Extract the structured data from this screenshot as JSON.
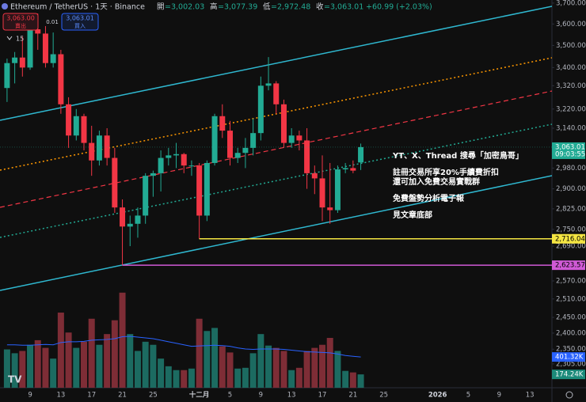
{
  "header": {
    "symbol": "Ethereum / TetherUS · 1天 · Binance",
    "ohlc": [
      {
        "label": "開",
        "value": "=3,002.03"
      },
      {
        "label": "高",
        "value": "=3,077.39"
      },
      {
        "label": "低",
        "value": "=2,972.48"
      },
      {
        "label": "收",
        "value": "=3,063.01"
      }
    ],
    "change": "+60.99 (+2.03%)"
  },
  "trade": {
    "sell_price": "3,063.00",
    "sell": "賣出",
    "spread": "0.01",
    "buy_price": "3,063.01",
    "buy": "買入"
  },
  "indicator_count": "15",
  "annotations": [
    "YT、X、Thread 搜尋「加密鳥哥」",
    "註冊交易所享20%手續費折扣",
    "還可加入免費交易實戰群",
    "免費盤勢分析電子報",
    "見文章底部"
  ],
  "chart_data": {
    "type": "candlestick",
    "log_scale": true,
    "categories": [
      null,
      null,
      null,
      "9",
      null,
      null,
      null,
      "13",
      null,
      null,
      null,
      "17",
      null,
      null,
      null,
      "21",
      null,
      null,
      null,
      "25",
      null,
      null,
      null,
      null,
      null,
      "十二月",
      null,
      null,
      null,
      "5",
      null,
      null,
      null,
      "9",
      null,
      null,
      null,
      "13",
      null,
      null,
      null,
      "17",
      null,
      null,
      null,
      "21",
      null,
      null,
      null,
      "25",
      null,
      null,
      null,
      null,
      null,
      null,
      "2026",
      null,
      null,
      null,
      "5",
      null,
      null,
      null,
      "9",
      null,
      null,
      null,
      "13",
      null
    ],
    "open": [
      3310,
      3420,
      3445,
      3400,
      3575,
      3555,
      3420,
      3460,
      3240,
      3110,
      3190,
      3080,
      3010,
      3110,
      3020,
      2830,
      2760,
      2770,
      2800,
      2950,
      2960,
      3020,
      3030,
      3035,
      2990,
      2990,
      2800,
      3000,
      3190,
      3130,
      3020,
      3040,
      3060,
      3120,
      3320,
      3330,
      3240,
      3080,
      3110,
      3090,
      2960,
      2940,
      2830,
      2820,
      2975,
      2980,
      3002.03,
      null,
      null,
      null,
      null,
      null,
      null,
      null,
      null,
      null,
      null,
      null,
      null,
      null,
      null,
      null,
      null,
      null,
      null,
      null,
      null,
      null,
      null,
      null
    ],
    "high": [
      3440,
      3470,
      3540,
      3610,
      3650,
      3590,
      3560,
      3480,
      3270,
      3220,
      3200,
      3150,
      3130,
      3140,
      3060,
      2860,
      2800,
      2830,
      2960,
      2970,
      3050,
      3060,
      3080,
      3040,
      3010,
      3000,
      3010,
      3200,
      3240,
      3170,
      3060,
      3100,
      3180,
      3360,
      3447,
      3340,
      3260,
      3140,
      3130,
      3140,
      2990,
      3030,
      3000,
      2990,
      3000,
      3010,
      3077.39,
      null,
      null,
      null,
      null,
      null,
      null,
      null,
      null,
      null,
      null,
      null,
      null,
      null,
      null,
      null,
      null,
      null,
      null,
      null,
      null,
      null,
      null,
      null
    ],
    "low": [
      3250,
      3330,
      3360,
      3390,
      3480,
      3400,
      3400,
      3200,
      3060,
      3090,
      3050,
      2950,
      2990,
      2990,
      2810,
      2623.57,
      2690,
      2720,
      2770,
      2870,
      2890,
      2990,
      2980,
      2960,
      2950,
      2716.04,
      2780,
      2990,
      3100,
      2990,
      3000,
      2980,
      3030,
      3090,
      3300,
      3200,
      3060,
      3060,
      3050,
      2900,
      2880,
      2780,
      2770,
      2810,
      2960,
      2960,
      2972.48,
      null,
      null,
      null,
      null,
      null,
      null,
      null,
      null,
      null,
      null,
      null,
      null,
      null,
      null,
      null,
      null,
      null,
      null,
      null,
      null,
      null,
      null,
      null
    ],
    "close": [
      3420,
      3445,
      3400,
      3575,
      3555,
      3420,
      3460,
      3240,
      3110,
      3190,
      3080,
      3010,
      3110,
      3020,
      2830,
      2760,
      2770,
      2800,
      2950,
      2960,
      3020,
      3030,
      3035,
      2990,
      2990,
      2800,
      3000,
      3190,
      3130,
      3020,
      3040,
      3060,
      3120,
      3320,
      3330,
      3240,
      3080,
      3110,
      3090,
      2960,
      2940,
      2830,
      2820,
      2975,
      2980,
      2970,
      3063.01,
      null,
      null,
      null,
      null,
      null,
      null,
      null,
      null,
      null,
      null,
      null,
      null,
      null,
      null,
      null,
      null,
      null,
      null,
      null,
      null,
      null,
      null,
      null
    ],
    "volume": [
      500000,
      450000,
      480000,
      560000,
      620000,
      520000,
      380000,
      980000,
      720000,
      520000,
      600000,
      900000,
      560000,
      700000,
      880000,
      1240000,
      700000,
      480000,
      600000,
      560000,
      380000,
      280000,
      230000,
      230000,
      250000,
      900000,
      740000,
      780000,
      540000,
      460000,
      250000,
      260000,
      450000,
      700000,
      550000,
      520000,
      480000,
      230000,
      260000,
      480000,
      520000,
      560000,
      650000,
      480000,
      220000,
      200000,
      174240,
      null,
      null,
      null,
      null,
      null,
      null,
      null,
      null,
      null,
      null,
      null,
      null,
      null,
      null,
      null,
      null,
      null,
      null,
      null,
      null,
      null,
      null,
      null
    ],
    "volume_ma": [
      560000,
      560000,
      555000,
      555000,
      560000,
      565000,
      560000,
      590000,
      600000,
      600000,
      605000,
      620000,
      625000,
      630000,
      640000,
      665000,
      670000,
      660000,
      650000,
      640000,
      620000,
      600000,
      580000,
      560000,
      540000,
      545000,
      550000,
      555000,
      550000,
      540000,
      520000,
      505000,
      500000,
      505000,
      505000,
      505000,
      500000,
      490000,
      480000,
      470000,
      465000,
      460000,
      455000,
      440000,
      420000,
      410000,
      401320,
      null,
      null,
      null,
      null,
      null,
      null,
      null,
      null,
      null,
      null,
      null,
      null,
      null,
      null,
      null,
      null,
      null,
      null,
      null,
      null,
      null,
      null,
      null
    ],
    "up_color": "#22ab94",
    "down_color": "#f23645",
    "volume_up_color": "#1c6b61",
    "volume_down_color": "#7e2d36",
    "ma_color": "#2962ff",
    "ylim": [
      2234,
      3715
    ],
    "yticks": [
      {
        "value": 3700,
        "label": "3,700.00"
      },
      {
        "value": 3600,
        "label": "3,600.00"
      },
      {
        "value": 3500,
        "label": "3,500.00"
      },
      {
        "value": 3400,
        "label": "3,400.00"
      },
      {
        "value": 3320,
        "label": "3,320.00"
      },
      {
        "value": 3220,
        "label": "3,220.00"
      },
      {
        "value": 3140,
        "label": "3,140.00"
      },
      {
        "value": 2980,
        "label": "2,980.00"
      },
      {
        "value": 2900,
        "label": "2,900.00"
      },
      {
        "value": 2825,
        "label": "2,825.00"
      },
      {
        "value": 2750,
        "label": "2,750.00"
      },
      {
        "value": 2690,
        "label": "2,690.00"
      },
      {
        "value": 2570,
        "label": "2,570.00"
      },
      {
        "value": 2510,
        "label": "2,510.00"
      },
      {
        "value": 2450,
        "label": "2,450.00"
      },
      {
        "value": 2400,
        "label": "2,400.00"
      },
      {
        "value": 2350,
        "label": "2,350.00"
      },
      {
        "value": 2305,
        "label": "2,305.00"
      }
    ],
    "volume_lim": [
      0,
      1300000
    ],
    "last_price": {
      "value": 3063.01,
      "label": "3,063.01",
      "countdown": "09:03:55"
    },
    "levels": [
      {
        "value": 2716.04,
        "label": "2,716.04",
        "color": "#f5e642"
      },
      {
        "value": 2623.57,
        "label": "2,623.57",
        "color": "#d05ad6"
      }
    ],
    "volume_labels": [
      {
        "value": 401320,
        "label": "401.32K",
        "color": "#2962ff"
      },
      {
        "value": 174240,
        "label": "174.24K",
        "color": "#1c8a7a"
      }
    ]
  }
}
